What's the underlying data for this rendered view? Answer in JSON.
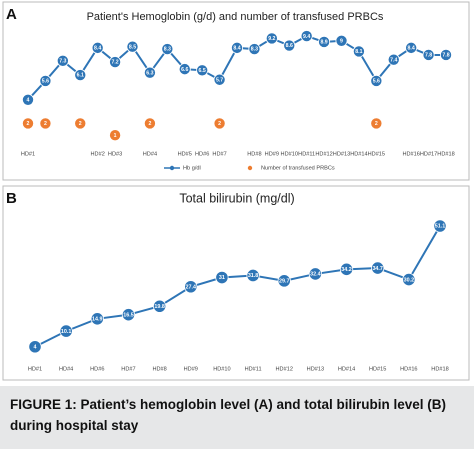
{
  "chart_data": [
    {
      "type": "line",
      "panel": "A",
      "title": "Patient's Hemoglobin (g/d) and number of transfused PRBCs",
      "categories": [
        "HD#1",
        null,
        null,
        null,
        "HD#2",
        "HD#3",
        null,
        "HD#4",
        null,
        "HD#5",
        "HD#6",
        "HD#7",
        null,
        "HD#8",
        "HD#9",
        "HD#10",
        "HD#11",
        "HD#12",
        "HD#13",
        "HD#14",
        "HD#15",
        null,
        "HD#16",
        "HD#17",
        "HD#18"
      ],
      "series": [
        {
          "name": "Hb g/dl",
          "color": "#2e75b6",
          "mode": "line",
          "values": [
            4,
            5.6,
            7.3,
            6.1,
            8.4,
            7.2,
            8.5,
            6.3,
            8.3,
            6.6,
            6.5,
            5.7,
            8.4,
            8.3,
            9.2,
            8.6,
            9.4,
            8.9,
            9,
            8.1,
            5.6,
            7.4,
            8.4,
            7.8,
            7.8
          ]
        },
        {
          "name": "Number of transfused PRBCs",
          "color": "#ed7d31",
          "mode": "markers",
          "values": [
            2,
            2,
            null,
            2,
            null,
            1,
            null,
            2,
            null,
            null,
            null,
            2,
            null,
            null,
            null,
            null,
            null,
            null,
            null,
            null,
            2,
            null,
            null,
            null,
            null
          ]
        }
      ],
      "ylim": [
        0,
        10
      ],
      "grid": false
    },
    {
      "type": "line",
      "panel": "B",
      "title": "Total bilirubin (mg/dl)",
      "categories": [
        "HD#1",
        "HD#4",
        "HD#6",
        "HD#7",
        "HD#8",
        "HD#9",
        "HD#10",
        "HD#11",
        "HD#12",
        "HD#13",
        "HD#14",
        "HD#15",
        "HD#16",
        "HD#18"
      ],
      "series": [
        {
          "name": "Total bilirubin",
          "color": "#2e75b6",
          "mode": "line",
          "values": [
            4,
            10.1,
            14.9,
            16.5,
            19.8,
            27.4,
            31,
            31.8,
            29.7,
            32.4,
            34.2,
            34.7,
            30.2,
            51.1
          ]
        }
      ],
      "ylim": [
        0,
        55
      ],
      "grid": false
    }
  ],
  "caption": "FIGURE 1: Patient’s hemoglobin level (A) and total bilirubin level (B) during hospital stay"
}
